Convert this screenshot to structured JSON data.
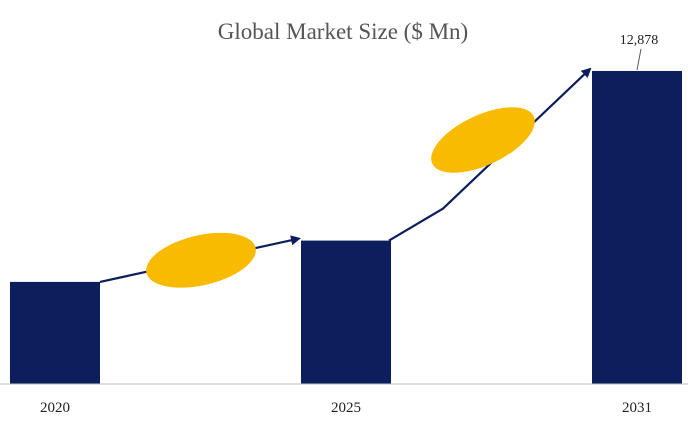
{
  "chart_data": {
    "type": "bar",
    "title": "Global Market Size ($ Mn)",
    "categories": [
      "2020",
      "2025",
      "2031"
    ],
    "values": [
      4200,
      5900,
      12878
    ],
    "data_labels": [
      "",
      "",
      "12,878"
    ],
    "xlabel": "",
    "ylabel": "",
    "ylim": [
      0,
      13000
    ],
    "grid": false,
    "legend": "none",
    "colors": {
      "bar": "#0c1f5c",
      "arrow": "#0c1f5c",
      "ellipse": "#f8bb00",
      "baseline": "#bfbfbf"
    }
  }
}
